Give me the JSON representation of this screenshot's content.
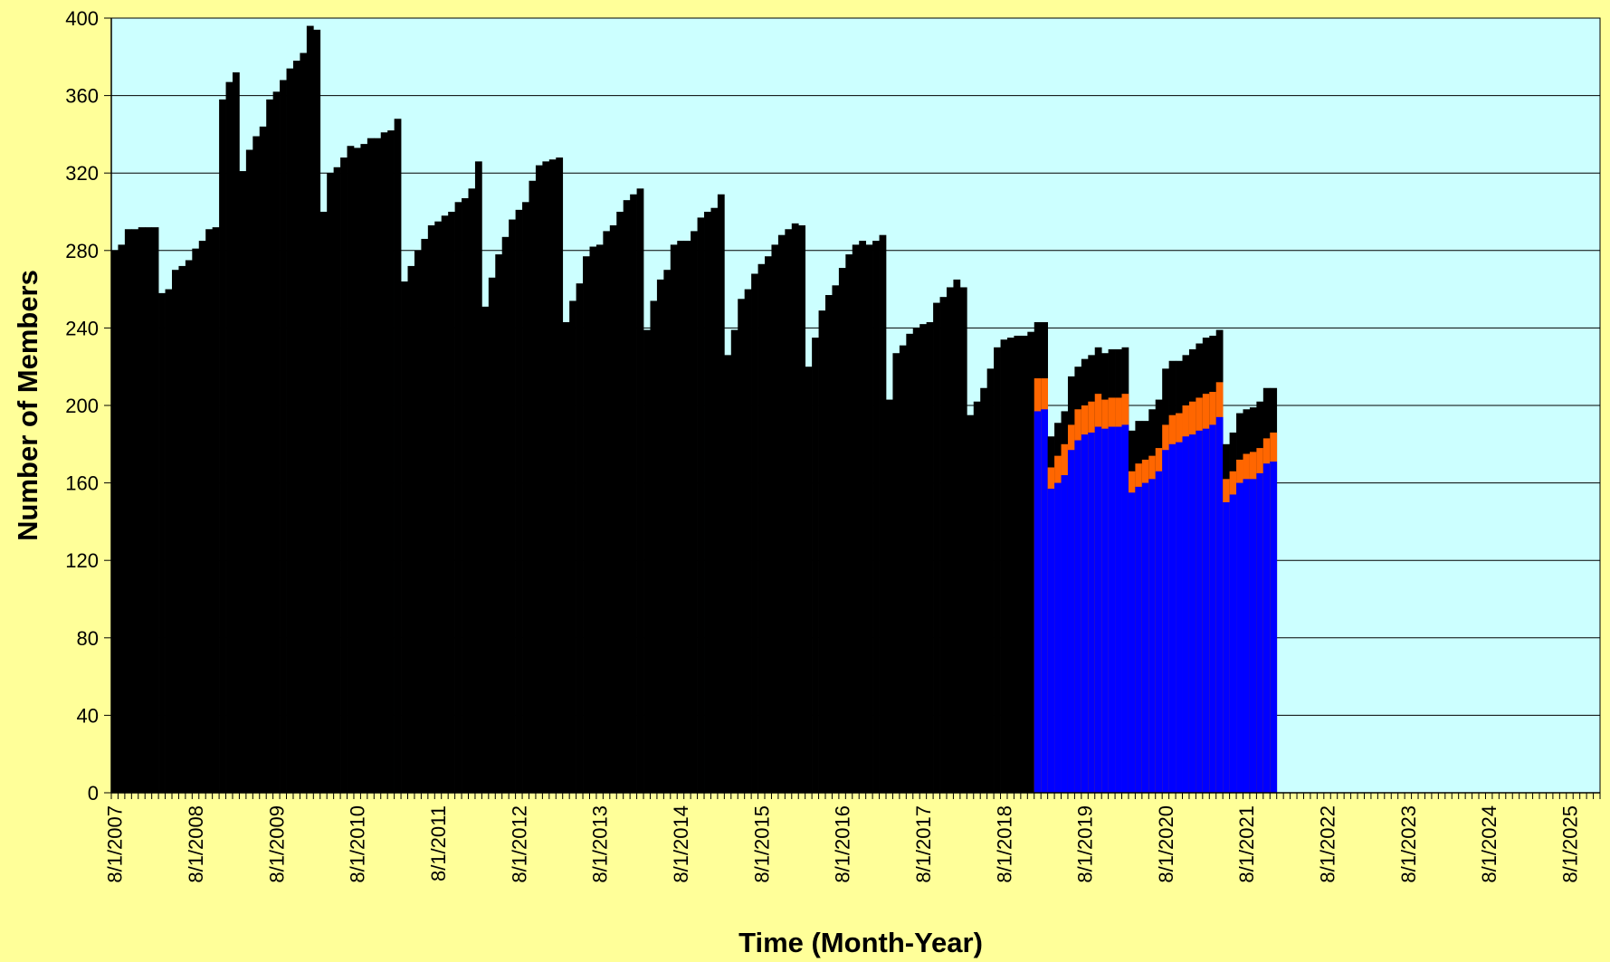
{
  "chart_data": {
    "type": "bar",
    "stacked": true,
    "xlabel": "Time (Month-Year)",
    "ylabel": "Number of Members",
    "ylim": [
      0,
      400
    ],
    "yticks": [
      0,
      40,
      80,
      120,
      160,
      200,
      240,
      280,
      320,
      360,
      400
    ],
    "xlim": [
      "8/1/2007",
      "12/1/2025"
    ],
    "xtick_labels": [
      "8/1/2007",
      "8/1/2008",
      "8/1/2009",
      "8/1/2010",
      "8/1/2011",
      "8/1/2012",
      "8/1/2013",
      "8/1/2014",
      "8/1/2015",
      "8/1/2016",
      "8/1/2017",
      "8/1/2018",
      "8/1/2019",
      "8/1/2020",
      "8/1/2021",
      "8/1/2022",
      "8/1/2023",
      "8/1/2024",
      "8/1/2025"
    ],
    "grid": "horizontal",
    "legend": "none",
    "colors": {
      "plot_background": "#CCFFFF",
      "page_background": "#FFFF99",
      "total": "#000000",
      "middle": "#FF6600",
      "base": "#0000FF",
      "gridline": "#000000"
    },
    "start_month": "8/1/2007",
    "totals": [
      280,
      283,
      291,
      291,
      292,
      292,
      292,
      258,
      260,
      270,
      272,
      275,
      281,
      285,
      291,
      292,
      358,
      367,
      372,
      321,
      332,
      339,
      344,
      358,
      362,
      368,
      374,
      378,
      382,
      396,
      394,
      300,
      320,
      323,
      328,
      334,
      333,
      335,
      338,
      338,
      341,
      342,
      348,
      264,
      272,
      280,
      286,
      293,
      295,
      298,
      300,
      305,
      307,
      312,
      326,
      251,
      266,
      278,
      287,
      296,
      301,
      305,
      316,
      324,
      326,
      327,
      328,
      243,
      254,
      263,
      277,
      282,
      283,
      290,
      293,
      300,
      306,
      309,
      312,
      239,
      254,
      265,
      270,
      283,
      285,
      285,
      290,
      297,
      300,
      302,
      309,
      226,
      239,
      255,
      260,
      268,
      273,
      277,
      283,
      288,
      291,
      294,
      293,
      220,
      235,
      249,
      257,
      262,
      271,
      278,
      283,
      285,
      283,
      285,
      288,
      203,
      227,
      231,
      237,
      240,
      242,
      243,
      253,
      256,
      261,
      265,
      261,
      195,
      202,
      209,
      219,
      230,
      234,
      235,
      236,
      236,
      238,
      243,
      243,
      184,
      191,
      197,
      215,
      220,
      224,
      226,
      230,
      227,
      229,
      229,
      230,
      187,
      192,
      192,
      198,
      203,
      219,
      223,
      223,
      226,
      229,
      232,
      235,
      236,
      239,
      180,
      186,
      196,
      198,
      199,
      202,
      209,
      209
    ],
    "middle": [
      null,
      null,
      null,
      null,
      null,
      null,
      null,
      null,
      null,
      null,
      null,
      null,
      null,
      null,
      null,
      null,
      null,
      null,
      null,
      null,
      null,
      null,
      null,
      null,
      null,
      null,
      null,
      null,
      null,
      null,
      null,
      null,
      null,
      null,
      null,
      null,
      null,
      null,
      null,
      null,
      null,
      null,
      null,
      null,
      null,
      null,
      null,
      null,
      null,
      null,
      null,
      null,
      null,
      null,
      null,
      null,
      null,
      null,
      null,
      null,
      null,
      null,
      null,
      null,
      null,
      null,
      null,
      null,
      null,
      null,
      null,
      null,
      null,
      null,
      null,
      null,
      null,
      null,
      null,
      null,
      null,
      null,
      null,
      null,
      null,
      null,
      null,
      null,
      null,
      null,
      null,
      null,
      null,
      null,
      null,
      null,
      null,
      null,
      null,
      null,
      null,
      null,
      null,
      null,
      null,
      null,
      null,
      null,
      null,
      null,
      null,
      null,
      null,
      null,
      null,
      null,
      null,
      null,
      null,
      null,
      null,
      null,
      null,
      null,
      null,
      null,
      null,
      null,
      null,
      null,
      null,
      null,
      null,
      null,
      null,
      null,
      null,
      214,
      214,
      168,
      174,
      180,
      190,
      198,
      200,
      202,
      206,
      203,
      204,
      204,
      206,
      166,
      170,
      172,
      174,
      178,
      190,
      195,
      196,
      200,
      202,
      204,
      206,
      207,
      212,
      162,
      166,
      172,
      175,
      176,
      178,
      183,
      186
    ],
    "base": [
      null,
      null,
      null,
      null,
      null,
      null,
      null,
      null,
      null,
      null,
      null,
      null,
      null,
      null,
      null,
      null,
      null,
      null,
      null,
      null,
      null,
      null,
      null,
      null,
      null,
      null,
      null,
      null,
      null,
      null,
      null,
      null,
      null,
      null,
      null,
      null,
      null,
      null,
      null,
      null,
      null,
      null,
      null,
      null,
      null,
      null,
      null,
      null,
      null,
      null,
      null,
      null,
      null,
      null,
      null,
      null,
      null,
      null,
      null,
      null,
      null,
      null,
      null,
      null,
      null,
      null,
      null,
      null,
      null,
      null,
      null,
      null,
      null,
      null,
      null,
      null,
      null,
      null,
      null,
      null,
      null,
      null,
      null,
      null,
      null,
      null,
      null,
      null,
      null,
      null,
      null,
      null,
      null,
      null,
      null,
      null,
      null,
      null,
      null,
      null,
      null,
      null,
      null,
      null,
      null,
      null,
      null,
      null,
      null,
      null,
      null,
      null,
      null,
      null,
      null,
      null,
      null,
      null,
      null,
      null,
      null,
      null,
      null,
      null,
      null,
      null,
      null,
      null,
      null,
      null,
      null,
      null,
      null,
      null,
      null,
      null,
      null,
      197,
      198,
      157,
      160,
      164,
      177,
      182,
      185,
      186,
      189,
      188,
      189,
      189,
      190,
      155,
      158,
      160,
      162,
      166,
      177,
      180,
      181,
      184,
      185,
      187,
      188,
      190,
      194,
      150,
      154,
      160,
      162,
      162,
      165,
      170,
      171
    ]
  }
}
